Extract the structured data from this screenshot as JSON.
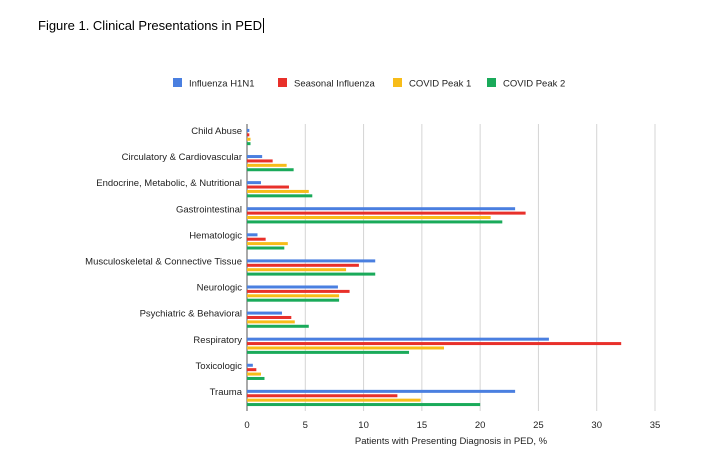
{
  "figure_title": "Figure 1. Clinical Presentations in PED",
  "chart_data": {
    "type": "bar",
    "orientation": "horizontal",
    "title": "",
    "xlabel": "Patients with Presenting Diagnosis in PED, %",
    "ylabel": "",
    "xlim": [
      0,
      35
    ],
    "xticks": [
      0,
      5,
      10,
      15,
      20,
      25,
      30,
      35
    ],
    "grid": true,
    "legend_position": "top",
    "categories": [
      "Child Abuse",
      "Circulatory & Cardiovascular",
      "Endocrine, Metabolic, & Nutritional",
      "Gastrointestinal",
      "Hematologic",
      "Musculoskeletal & Connective Tissue",
      "Neurologic",
      "Psychiatric & Behavioral",
      "Respiratory",
      "Toxicologic",
      "Trauma"
    ],
    "series": [
      {
        "name": "Influenza H1N1",
        "color": "#4a7fe0",
        "values": [
          0.2,
          1.3,
          1.2,
          23.0,
          0.9,
          11.0,
          7.8,
          3.0,
          25.9,
          0.5,
          23.0
        ]
      },
      {
        "name": "Seasonal Influenza",
        "color": "#e8302a",
        "values": [
          0.2,
          2.2,
          3.6,
          23.9,
          1.6,
          9.6,
          8.8,
          3.8,
          32.1,
          0.8,
          12.9
        ]
      },
      {
        "name": "COVID Peak 1",
        "color": "#f7bc19",
        "values": [
          0.3,
          3.4,
          5.3,
          20.9,
          3.5,
          8.5,
          7.9,
          4.1,
          16.9,
          1.2,
          14.9
        ]
      },
      {
        "name": "COVID Peak 2",
        "color": "#1aaa5a",
        "values": [
          0.3,
          4.0,
          5.6,
          21.9,
          3.2,
          11.0,
          7.9,
          5.3,
          13.9,
          1.5,
          20.0
        ]
      }
    ]
  }
}
